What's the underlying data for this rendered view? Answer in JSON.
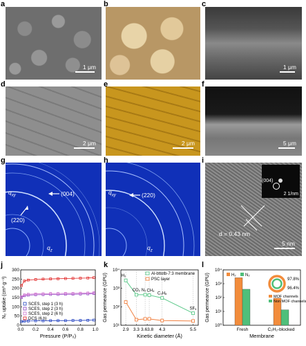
{
  "panels": {
    "a": {
      "label": "a",
      "scalebar": "1 μm"
    },
    "b": {
      "label": "b"
    },
    "c": {
      "label": "c",
      "scalebar": "1 μm"
    },
    "d": {
      "label": "d",
      "scalebar": "2 μm"
    },
    "e": {
      "label": "e",
      "scalebar": "2 μm"
    },
    "f": {
      "label": "f",
      "scalebar": "5 μm"
    },
    "g": {
      "label": "g",
      "qxy": "q",
      "qxy_sub": "xy",
      "qz": "q",
      "qz_sub": "z",
      "peak1": "(220)",
      "peak2": "(004)"
    },
    "h": {
      "label": "h",
      "qxy": "q",
      "qxy_sub": "xy",
      "qz": "q",
      "qz_sub": "z",
      "peak1": "(220)"
    },
    "i": {
      "label": "i",
      "spacing": "d = 0.43 nm",
      "scalebar": "5 nm",
      "inset_peak": "(004)",
      "inset_scalebar": "2 1/nm"
    },
    "j": {
      "label": "j"
    },
    "k": {
      "label": "k"
    },
    "l": {
      "label": "l"
    }
  },
  "chart_data": [
    {
      "id": "j",
      "type": "scatter",
      "xlabel": "Pressure (P/P₀)",
      "ylabel": "N₂ uptake (cm³·g⁻¹)",
      "xlim": [
        0,
        1.0
      ],
      "ylim": [
        0,
        300
      ],
      "xticks": [
        0,
        0.2,
        0.4,
        0.6,
        0.8,
        1.0
      ],
      "yticks": [
        0,
        50,
        100,
        150,
        200,
        250,
        300
      ],
      "legend_position": "bottom-left",
      "series": [
        {
          "name": "SCES, step 1 (3 h)",
          "color": "#1f3fbf",
          "x": [
            0.01,
            0.05,
            0.1,
            0.2,
            0.3,
            0.4,
            0.5,
            0.6,
            0.7,
            0.8,
            0.9,
            0.98
          ],
          "y": [
            20,
            22,
            23,
            24,
            24,
            25,
            25,
            25,
            26,
            26,
            27,
            28
          ]
        },
        {
          "name": "SCES, step 2 (3 h)",
          "color": "#8a3fbf",
          "x": [
            0.01,
            0.05,
            0.1,
            0.2,
            0.3,
            0.4,
            0.5,
            0.6,
            0.7,
            0.8,
            0.9,
            0.98
          ],
          "y": [
            150,
            160,
            163,
            165,
            166,
            167,
            167,
            168,
            168,
            169,
            170,
            172
          ]
        },
        {
          "name": "SCES, step 2 (6 h)",
          "color": "#d070d0",
          "x": [
            0.01,
            0.05,
            0.1,
            0.2,
            0.3,
            0.4,
            0.5,
            0.6,
            0.7,
            0.8,
            0.9,
            0.98
          ],
          "y": [
            155,
            165,
            168,
            170,
            171,
            172,
            172,
            173,
            173,
            174,
            175,
            176
          ]
        },
        {
          "name": "DCS (6 h)",
          "color": "#e02020",
          "x": [
            0.01,
            0.05,
            0.1,
            0.2,
            0.3,
            0.4,
            0.5,
            0.6,
            0.7,
            0.8,
            0.9,
            0.98
          ],
          "y": [
            215,
            240,
            245,
            248,
            250,
            251,
            252,
            253,
            254,
            255,
            256,
            258
          ]
        }
      ]
    },
    {
      "id": "k",
      "type": "line",
      "xlabel": "Kinetic diameter (Å)",
      "ylabel": "Gas permeance (GPU)",
      "yscale": "log",
      "ylim": [
        10,
        10000
      ],
      "yticks": [
        10,
        100,
        1000,
        10000
      ],
      "ytick_labels": [
        "10¹",
        "10²",
        "10³",
        "10⁴"
      ],
      "xtick_labels": [
        "2.9",
        "3.3",
        "3.63.8",
        "4.3",
        "5.5"
      ],
      "categories": [
        "H₂",
        "CO₂",
        "N₂",
        "CH₄",
        "C₃H₈",
        "SF₆"
      ],
      "kinetic_diameter": [
        2.89,
        3.3,
        3.64,
        3.8,
        4.3,
        5.5
      ],
      "legend_position": "top-right",
      "series": [
        {
          "name": "Al-bttotb-7:3 membrane",
          "color": "#5cc98a",
          "values": [
            2700,
            450,
            450,
            430,
            300,
            45
          ]
        },
        {
          "name": "PSC layer",
          "color": "#f08040",
          "values": [
            180,
            20,
            22,
            22,
            18,
            17
          ]
        }
      ]
    },
    {
      "id": "l",
      "type": "bar",
      "xlabel": "Membrane",
      "ylabel": "Gas permeance (GPU)",
      "yscale": "log",
      "ylim": [
        1,
        10000
      ],
      "yticks": [
        1,
        10,
        100,
        1000,
        10000
      ],
      "ytick_labels": [
        "10⁰",
        "10¹",
        "10²",
        "10³",
        "10⁴"
      ],
      "categories": [
        "Fresh",
        "C₂H₂-blocked"
      ],
      "legend_position": "top-left",
      "series": [
        {
          "name": "H₂",
          "color": "#f28c3c",
          "values": [
            2700,
            90
          ]
        },
        {
          "name": "N₂",
          "color": "#4fbf7a",
          "values": [
            400,
            13
          ]
        }
      ],
      "inset": {
        "type": "pie",
        "outer_label": "97.8%",
        "inner_label": "96.4%",
        "legend": [
          {
            "name": "MOF channels",
            "color": "#f28c3c"
          },
          {
            "name": "Non MOF channels",
            "color": "#4fbf7a"
          }
        ]
      }
    }
  ]
}
